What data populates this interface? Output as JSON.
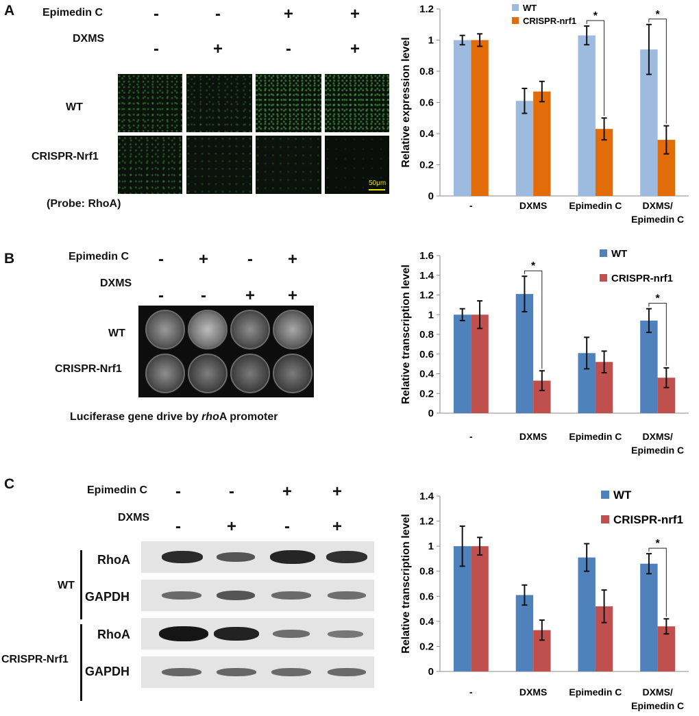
{
  "panels": {
    "A": {
      "letter": "A",
      "row_header_1": "Epimedin C",
      "row_header_2": "DXMS",
      "signs_row1": [
        "-",
        "-",
        "+",
        "+"
      ],
      "signs_row2": [
        "-",
        "+",
        "-",
        "+"
      ],
      "row_labels": [
        "WT",
        "CRISPR-Nrf1"
      ],
      "caption": "(Probe: RhoA)",
      "scale_bar": "50μm"
    },
    "B": {
      "letter": "B",
      "row_header_1": "Epimedin C",
      "row_header_2": "DXMS",
      "signs_row1": [
        "-",
        "+",
        "-",
        "+"
      ],
      "signs_row2": [
        "-",
        "-",
        "+",
        "+"
      ],
      "row_labels": [
        "WT",
        "CRISPR-Nrf1"
      ],
      "caption_pre": "Luciferase  gene drive by ",
      "caption_italic": "rho",
      "caption_post": "A promoter"
    },
    "C": {
      "letter": "C",
      "row_header_1": "Epimedin C",
      "row_header_2": "DXMS",
      "signs_row1": [
        "-",
        "-",
        "+",
        "+"
      ],
      "signs_row2": [
        "-",
        "+",
        "-",
        "+"
      ],
      "group_labels": [
        "WT",
        "CRISPR-Nrf1"
      ],
      "blot_labels": [
        "RhoA",
        "GAPDH",
        "RhoA",
        "GAPDH"
      ]
    }
  },
  "colors": {
    "A_wt": "#9dbbdf",
    "A_crispr": "#e36c0a",
    "B_wt": "#4f81bd",
    "B_crispr": "#c0504d"
  },
  "chart_data": [
    {
      "type": "bar",
      "categories": [
        "-",
        "DXMS",
        "Epimedin C",
        "DXMS/\nEpimedin C"
      ],
      "series": [
        {
          "name": "WT",
          "values": [
            1.0,
            0.61,
            1.03,
            0.94
          ],
          "errors": [
            0.03,
            0.08,
            0.06,
            0.16
          ]
        },
        {
          "name": "CRISPR-nrf1",
          "values": [
            1.0,
            0.67,
            0.43,
            0.36
          ],
          "errors": [
            0.04,
            0.065,
            0.07,
            0.09
          ]
        }
      ],
      "significance": [
        2,
        3
      ],
      "ylabel": "Relative expression  level",
      "ylim": [
        0,
        1.2
      ],
      "yticks": [
        "0",
        "0.2",
        "0.4",
        "0.6",
        "0.8",
        "1",
        "1.2"
      ],
      "legend": "top-left",
      "legend_font": 13
    },
    {
      "type": "bar",
      "categories": [
        "-",
        "DXMS",
        "Epimedin C",
        "DXMS/\nEpimedin C"
      ],
      "series": [
        {
          "name": "WT",
          "values": [
            1.0,
            1.21,
            0.61,
            0.94
          ],
          "errors": [
            0.06,
            0.18,
            0.16,
            0.12
          ]
        },
        {
          "name": "CRISPR-nrf1",
          "values": [
            1.0,
            0.33,
            0.52,
            0.36
          ],
          "errors": [
            0.14,
            0.1,
            0.11,
            0.1
          ]
        }
      ],
      "significance": [
        1,
        3
      ],
      "ylabel": "Relative transcription  level",
      "ylim": [
        0,
        1.6
      ],
      "yticks": [
        "0",
        "0.2",
        "0.4",
        "0.6",
        "0.8",
        "1",
        "1.2",
        "1.4",
        "1.6"
      ],
      "legend": "top-right",
      "legend_font": 15
    },
    {
      "type": "bar",
      "categories": [
        "-",
        "DXMS",
        "Epimedin C",
        "DXMS/\nEpimedin C"
      ],
      "series": [
        {
          "name": "WT",
          "values": [
            1.0,
            0.61,
            0.91,
            0.86
          ],
          "errors": [
            0.16,
            0.08,
            0.11,
            0.08
          ]
        },
        {
          "name": "CRISPR-nrf1",
          "values": [
            1.0,
            0.33,
            0.52,
            0.36
          ],
          "errors": [
            0.07,
            0.08,
            0.13,
            0.06
          ]
        }
      ],
      "significance": [
        3
      ],
      "ylabel": "Relative transcription  level",
      "ylim": [
        0,
        1.4
      ],
      "yticks": [
        "0",
        "0.2",
        "0.4",
        "0.6",
        "0.8",
        "1",
        "1.2",
        "1.4"
      ],
      "legend": "top-right",
      "legend_font": 17
    }
  ]
}
